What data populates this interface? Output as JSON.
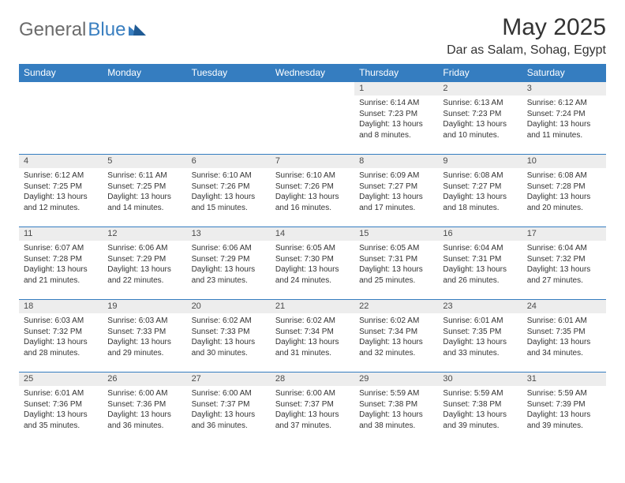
{
  "brand": {
    "part1": "General",
    "part2": "Blue"
  },
  "title": "May 2025",
  "location": "Dar as Salam, Sohag, Egypt",
  "colors": {
    "header_bg": "#357dc0",
    "header_text": "#ffffff",
    "daynum_bg": "#ededed",
    "border": "#357dc0",
    "logo_gray": "#6b6b6b",
    "logo_blue": "#3a7fc0"
  },
  "day_names": [
    "Sunday",
    "Monday",
    "Tuesday",
    "Wednesday",
    "Thursday",
    "Friday",
    "Saturday"
  ],
  "weeks": [
    [
      {
        "n": "",
        "sr": "",
        "ss": "",
        "dl": ""
      },
      {
        "n": "",
        "sr": "",
        "ss": "",
        "dl": ""
      },
      {
        "n": "",
        "sr": "",
        "ss": "",
        "dl": ""
      },
      {
        "n": "",
        "sr": "",
        "ss": "",
        "dl": ""
      },
      {
        "n": "1",
        "sr": "Sunrise: 6:14 AM",
        "ss": "Sunset: 7:23 PM",
        "dl": "Daylight: 13 hours and 8 minutes."
      },
      {
        "n": "2",
        "sr": "Sunrise: 6:13 AM",
        "ss": "Sunset: 7:23 PM",
        "dl": "Daylight: 13 hours and 10 minutes."
      },
      {
        "n": "3",
        "sr": "Sunrise: 6:12 AM",
        "ss": "Sunset: 7:24 PM",
        "dl": "Daylight: 13 hours and 11 minutes."
      }
    ],
    [
      {
        "n": "4",
        "sr": "Sunrise: 6:12 AM",
        "ss": "Sunset: 7:25 PM",
        "dl": "Daylight: 13 hours and 12 minutes."
      },
      {
        "n": "5",
        "sr": "Sunrise: 6:11 AM",
        "ss": "Sunset: 7:25 PM",
        "dl": "Daylight: 13 hours and 14 minutes."
      },
      {
        "n": "6",
        "sr": "Sunrise: 6:10 AM",
        "ss": "Sunset: 7:26 PM",
        "dl": "Daylight: 13 hours and 15 minutes."
      },
      {
        "n": "7",
        "sr": "Sunrise: 6:10 AM",
        "ss": "Sunset: 7:26 PM",
        "dl": "Daylight: 13 hours and 16 minutes."
      },
      {
        "n": "8",
        "sr": "Sunrise: 6:09 AM",
        "ss": "Sunset: 7:27 PM",
        "dl": "Daylight: 13 hours and 17 minutes."
      },
      {
        "n": "9",
        "sr": "Sunrise: 6:08 AM",
        "ss": "Sunset: 7:27 PM",
        "dl": "Daylight: 13 hours and 18 minutes."
      },
      {
        "n": "10",
        "sr": "Sunrise: 6:08 AM",
        "ss": "Sunset: 7:28 PM",
        "dl": "Daylight: 13 hours and 20 minutes."
      }
    ],
    [
      {
        "n": "11",
        "sr": "Sunrise: 6:07 AM",
        "ss": "Sunset: 7:28 PM",
        "dl": "Daylight: 13 hours and 21 minutes."
      },
      {
        "n": "12",
        "sr": "Sunrise: 6:06 AM",
        "ss": "Sunset: 7:29 PM",
        "dl": "Daylight: 13 hours and 22 minutes."
      },
      {
        "n": "13",
        "sr": "Sunrise: 6:06 AM",
        "ss": "Sunset: 7:29 PM",
        "dl": "Daylight: 13 hours and 23 minutes."
      },
      {
        "n": "14",
        "sr": "Sunrise: 6:05 AM",
        "ss": "Sunset: 7:30 PM",
        "dl": "Daylight: 13 hours and 24 minutes."
      },
      {
        "n": "15",
        "sr": "Sunrise: 6:05 AM",
        "ss": "Sunset: 7:31 PM",
        "dl": "Daylight: 13 hours and 25 minutes."
      },
      {
        "n": "16",
        "sr": "Sunrise: 6:04 AM",
        "ss": "Sunset: 7:31 PM",
        "dl": "Daylight: 13 hours and 26 minutes."
      },
      {
        "n": "17",
        "sr": "Sunrise: 6:04 AM",
        "ss": "Sunset: 7:32 PM",
        "dl": "Daylight: 13 hours and 27 minutes."
      }
    ],
    [
      {
        "n": "18",
        "sr": "Sunrise: 6:03 AM",
        "ss": "Sunset: 7:32 PM",
        "dl": "Daylight: 13 hours and 28 minutes."
      },
      {
        "n": "19",
        "sr": "Sunrise: 6:03 AM",
        "ss": "Sunset: 7:33 PM",
        "dl": "Daylight: 13 hours and 29 minutes."
      },
      {
        "n": "20",
        "sr": "Sunrise: 6:02 AM",
        "ss": "Sunset: 7:33 PM",
        "dl": "Daylight: 13 hours and 30 minutes."
      },
      {
        "n": "21",
        "sr": "Sunrise: 6:02 AM",
        "ss": "Sunset: 7:34 PM",
        "dl": "Daylight: 13 hours and 31 minutes."
      },
      {
        "n": "22",
        "sr": "Sunrise: 6:02 AM",
        "ss": "Sunset: 7:34 PM",
        "dl": "Daylight: 13 hours and 32 minutes."
      },
      {
        "n": "23",
        "sr": "Sunrise: 6:01 AM",
        "ss": "Sunset: 7:35 PM",
        "dl": "Daylight: 13 hours and 33 minutes."
      },
      {
        "n": "24",
        "sr": "Sunrise: 6:01 AM",
        "ss": "Sunset: 7:35 PM",
        "dl": "Daylight: 13 hours and 34 minutes."
      }
    ],
    [
      {
        "n": "25",
        "sr": "Sunrise: 6:01 AM",
        "ss": "Sunset: 7:36 PM",
        "dl": "Daylight: 13 hours and 35 minutes."
      },
      {
        "n": "26",
        "sr": "Sunrise: 6:00 AM",
        "ss": "Sunset: 7:36 PM",
        "dl": "Daylight: 13 hours and 36 minutes."
      },
      {
        "n": "27",
        "sr": "Sunrise: 6:00 AM",
        "ss": "Sunset: 7:37 PM",
        "dl": "Daylight: 13 hours and 36 minutes."
      },
      {
        "n": "28",
        "sr": "Sunrise: 6:00 AM",
        "ss": "Sunset: 7:37 PM",
        "dl": "Daylight: 13 hours and 37 minutes."
      },
      {
        "n": "29",
        "sr": "Sunrise: 5:59 AM",
        "ss": "Sunset: 7:38 PM",
        "dl": "Daylight: 13 hours and 38 minutes."
      },
      {
        "n": "30",
        "sr": "Sunrise: 5:59 AM",
        "ss": "Sunset: 7:38 PM",
        "dl": "Daylight: 13 hours and 39 minutes."
      },
      {
        "n": "31",
        "sr": "Sunrise: 5:59 AM",
        "ss": "Sunset: 7:39 PM",
        "dl": "Daylight: 13 hours and 39 minutes."
      }
    ]
  ]
}
